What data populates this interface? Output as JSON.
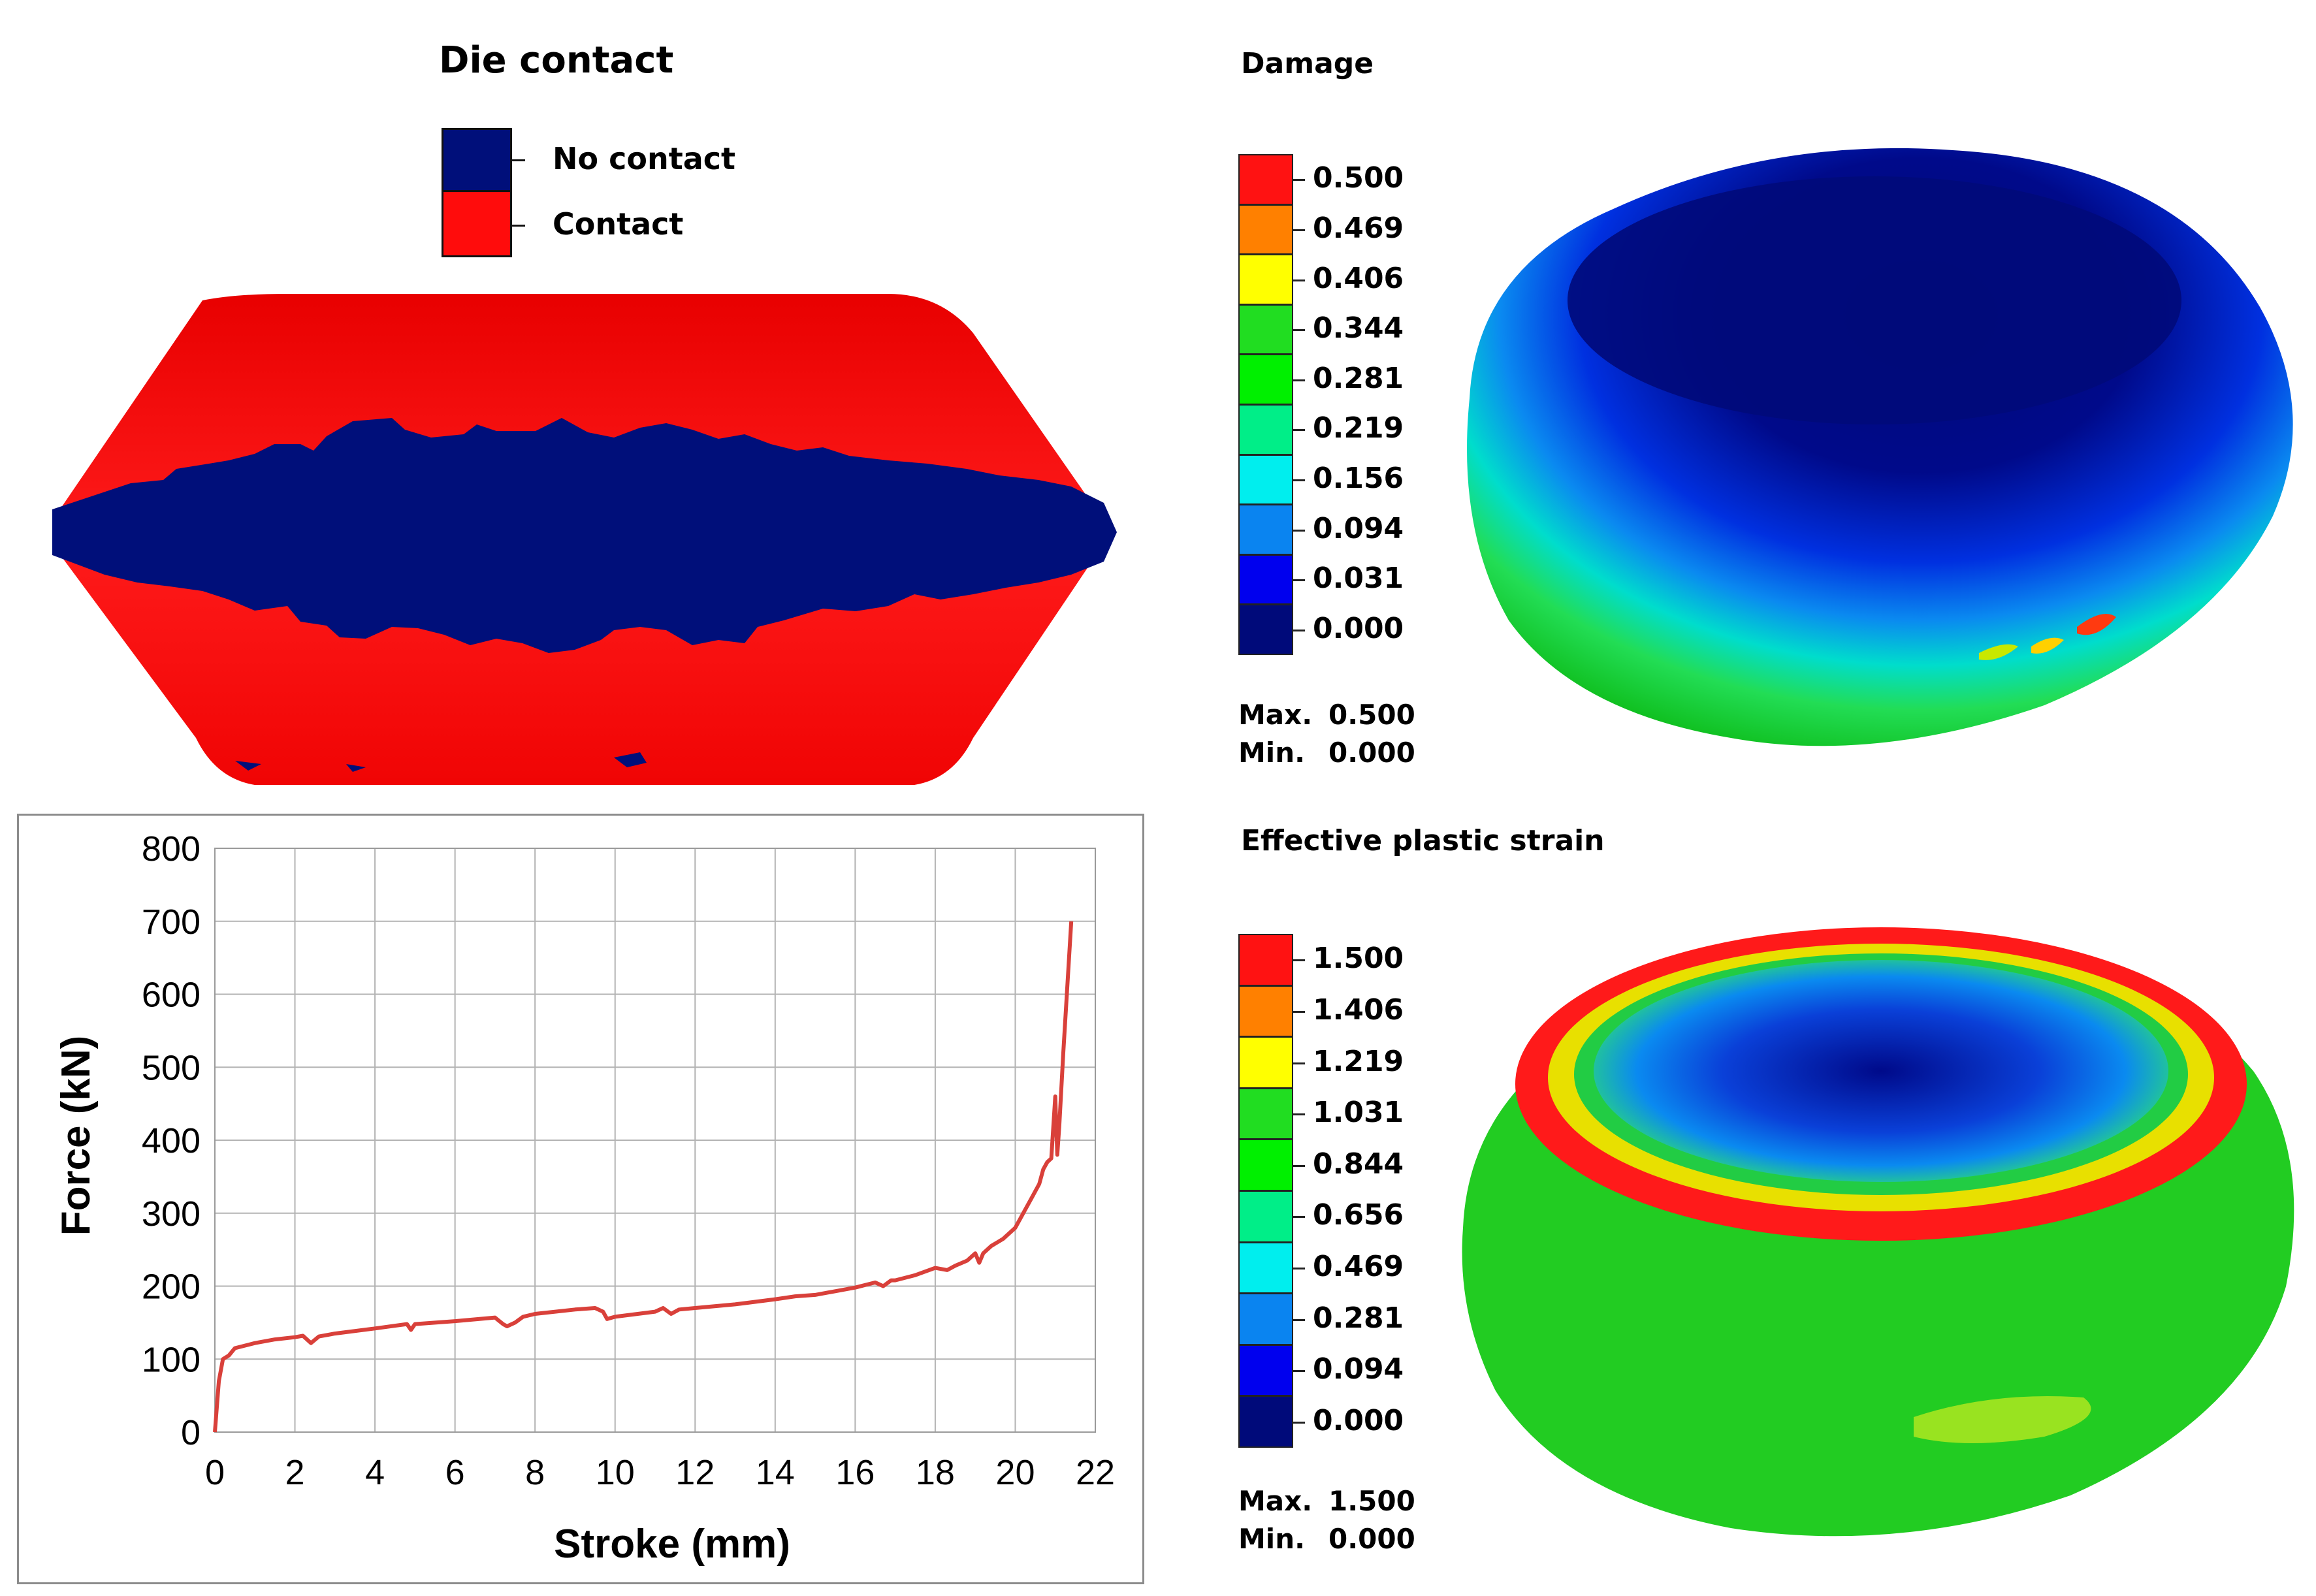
{
  "die_contact": {
    "title": "Die contact",
    "legend": [
      {
        "label": "No contact",
        "color": "#000f7a"
      },
      {
        "label": "Contact",
        "color": "#ff0c0c"
      }
    ]
  },
  "damage": {
    "title": "Damage",
    "scale": [
      {
        "label": "0.500",
        "color": "#ff1212"
      },
      {
        "label": "0.469",
        "color": "#ff8000"
      },
      {
        "label": "0.406",
        "color": "#ffff00"
      },
      {
        "label": "0.344",
        "color": "#21dd21"
      },
      {
        "label": "0.281",
        "color": "#00f000"
      },
      {
        "label": "0.219",
        "color": "#00ee88"
      },
      {
        "label": "0.156",
        "color": "#00eeee"
      },
      {
        "label": "0.094",
        "color": "#0a84f0"
      },
      {
        "label": "0.031",
        "color": "#0000ee"
      },
      {
        "label": "0.000",
        "color": "#000a7a"
      }
    ],
    "max_label": "Max.",
    "max_value": "0.500",
    "min_label": "Min.",
    "min_value": "0.000"
  },
  "effective_plastic_strain": {
    "title": "Effective plastic strain",
    "scale": [
      {
        "label": "1.500",
        "color": "#ff1212"
      },
      {
        "label": "1.406",
        "color": "#ff8000"
      },
      {
        "label": "1.219",
        "color": "#ffff00"
      },
      {
        "label": "1.031",
        "color": "#21dd21"
      },
      {
        "label": "0.844",
        "color": "#00f000"
      },
      {
        "label": "0.656",
        "color": "#00ee88"
      },
      {
        "label": "0.469",
        "color": "#00eeee"
      },
      {
        "label": "0.281",
        "color": "#0a84f0"
      },
      {
        "label": "0.094",
        "color": "#0000ee"
      },
      {
        "label": "0.000",
        "color": "#000a7a"
      }
    ],
    "max_label": "Max.",
    "max_value": "1.500",
    "min_label": "Min.",
    "min_value": "0.000"
  },
  "chart_data": {
    "type": "line",
    "title": "",
    "xlabel": "Stroke (mm)",
    "ylabel": "Force (kN)",
    "xlim": [
      0,
      22
    ],
    "ylim": [
      0,
      800
    ],
    "xticks": [
      0,
      2,
      4,
      6,
      8,
      10,
      12,
      14,
      16,
      18,
      20,
      22
    ],
    "yticks": [
      0,
      100,
      200,
      300,
      400,
      500,
      600,
      700,
      800
    ],
    "grid": true,
    "line_color": "#d9403a",
    "series": [
      {
        "name": "Force",
        "x": [
          0,
          0.1,
          0.2,
          0.35,
          0.5,
          1.0,
          1.5,
          2.0,
          2.2,
          2.4,
          2.6,
          3.0,
          4.0,
          4.8,
          4.9,
          5.0,
          6.0,
          7.0,
          7.2,
          7.3,
          7.5,
          7.7,
          8.0,
          9.0,
          9.5,
          9.7,
          9.8,
          10.0,
          11.0,
          11.2,
          11.4,
          11.6,
          12.0,
          13.0,
          14.0,
          14.5,
          15.0,
          16.0,
          16.5,
          16.7,
          16.9,
          17.0,
          17.5,
          18.0,
          18.3,
          18.5,
          18.8,
          19.0,
          19.1,
          19.2,
          19.4,
          19.7,
          20.0,
          20.2,
          20.4,
          20.6,
          20.7,
          20.8,
          20.9,
          21.0,
          21.05,
          21.1,
          21.2,
          21.4
        ],
        "y": [
          0,
          70,
          100,
          105,
          115,
          122,
          127,
          130,
          132,
          122,
          131,
          135,
          142,
          148,
          140,
          148,
          152,
          157,
          148,
          145,
          150,
          158,
          162,
          168,
          170,
          165,
          155,
          158,
          165,
          170,
          162,
          168,
          170,
          175,
          182,
          186,
          188,
          198,
          205,
          200,
          208,
          208,
          215,
          225,
          222,
          228,
          235,
          245,
          232,
          245,
          255,
          265,
          280,
          300,
          320,
          340,
          360,
          370,
          375,
          460,
          380,
          420,
          520,
          700
        ]
      }
    ]
  }
}
